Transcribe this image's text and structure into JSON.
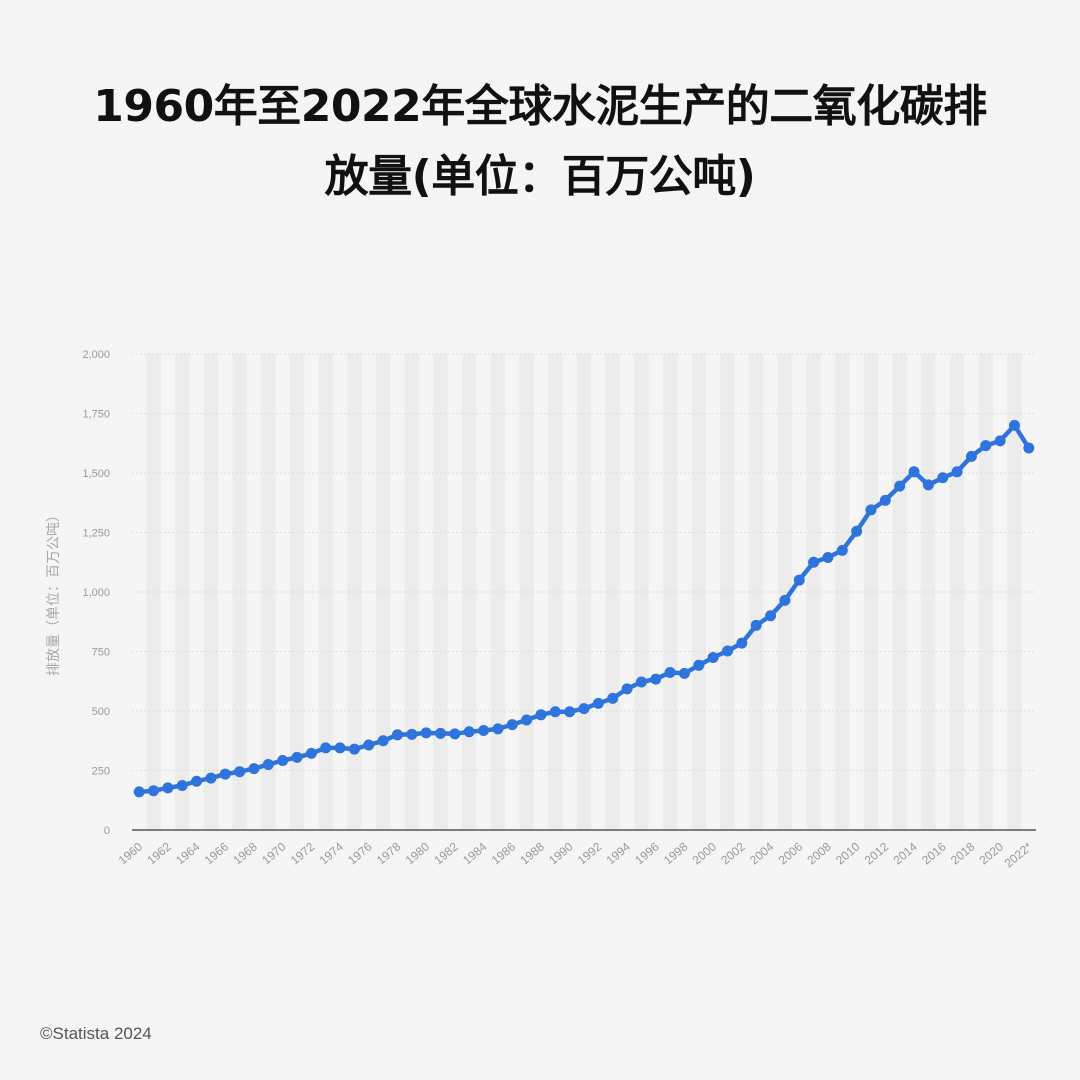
{
  "title": {
    "line1": "1960年至2022年全球水泥生产的二氧化碳排",
    "line2": "放量(单位：百万公吨)"
  },
  "credit": "©Statista 2024",
  "colors": {
    "line": "#2f74dc",
    "grid": "#dcdcdc",
    "band": "#ececec",
    "axis": "#555555"
  },
  "chart_data": {
    "type": "line",
    "title": "1960年至2022年全球水泥生产的二氧化碳排放量(单位：百万公吨)",
    "ylabel": "排放量（单位：百万公吨）",
    "xlabel": "",
    "ylim": [
      0,
      2000
    ],
    "yticks": [
      0,
      250,
      500,
      750,
      1000,
      1250,
      1500,
      1750,
      2000
    ],
    "ytick_labels": [
      "0",
      "250",
      "500",
      "750",
      "1,000",
      "1,250",
      "1,500",
      "1,750",
      "2,000"
    ],
    "xtick_labels": [
      "1960",
      "1962",
      "1964",
      "1966",
      "1968",
      "1970",
      "1972",
      "1974",
      "1976",
      "1978",
      "1980",
      "1982",
      "1984",
      "1986",
      "1988",
      "1990",
      "1992",
      "1994",
      "1996",
      "1998",
      "2000",
      "2002",
      "2004",
      "2006",
      "2008",
      "2010",
      "2012",
      "2014",
      "2016",
      "2018",
      "2020",
      "2022*"
    ],
    "grid": true,
    "series": [
      {
        "x": [
          1960,
          1961,
          1962,
          1963,
          1964,
          1965,
          1966,
          1967,
          1968,
          1969,
          1970,
          1971,
          1972,
          1973,
          1974,
          1975,
          1976,
          1977,
          1978,
          1979,
          1980,
          1981,
          1982,
          1983,
          1984,
          1985,
          1986,
          1987,
          1988,
          1989,
          1990,
          1991,
          1992,
          1993,
          1994,
          1995,
          1996,
          1997,
          1998,
          1999,
          2000,
          2001,
          2002,
          2003,
          2004,
          2005,
          2006,
          2007,
          2008,
          2009,
          2010,
          2011,
          2012,
          2013,
          2014,
          2015,
          2016,
          2017,
          2018,
          2019,
          2020,
          2021,
          2022
        ],
        "values": [
          160,
          165,
          177,
          187,
          205,
          218,
          235,
          245,
          258,
          275,
          292,
          305,
          322,
          345,
          345,
          340,
          357,
          375,
          400,
          402,
          408,
          406,
          404,
          413,
          418,
          425,
          443,
          462,
          484,
          497,
          497,
          510,
          532,
          553,
          593,
          622,
          634,
          662,
          658,
          692,
          725,
          752,
          785,
          860,
          900,
          965,
          1050,
          1125,
          1145,
          1175,
          1255,
          1345,
          1385,
          1445,
          1505,
          1450,
          1480,
          1505,
          1570,
          1615,
          1635,
          1700,
          1605
        ]
      }
    ]
  }
}
